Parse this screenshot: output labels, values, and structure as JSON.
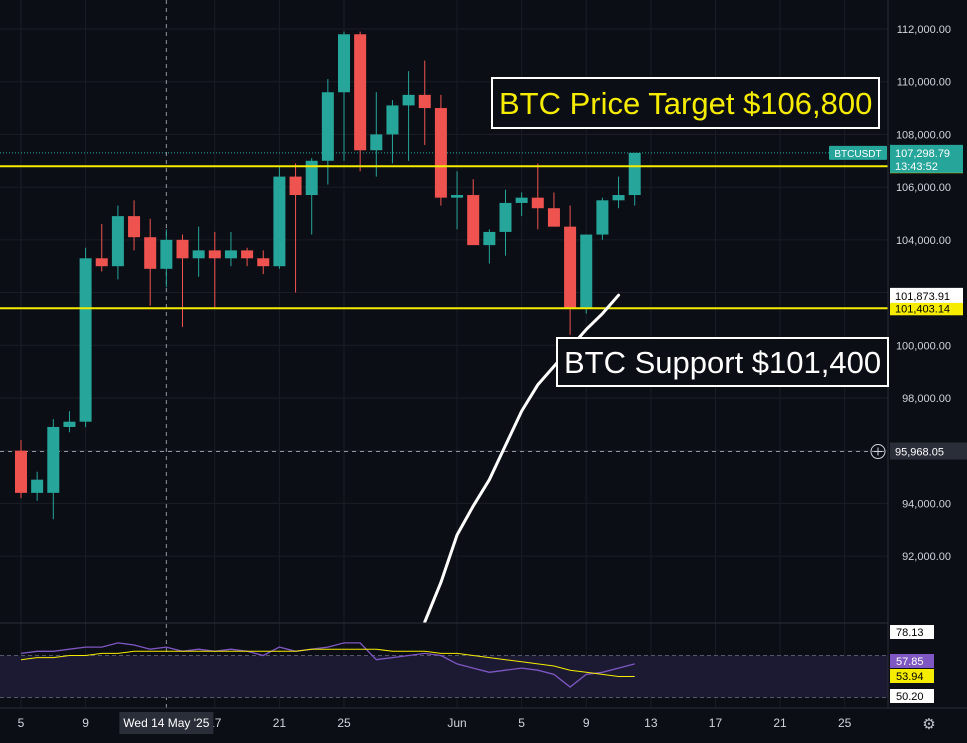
{
  "chart_data": {
    "type": "candlestick",
    "symbol": "BTCUSDT",
    "last_price": "107,298.79",
    "countdown": "13:43:52",
    "crosshair": {
      "date_label": "Wed 14 May '25",
      "price_label": "95,968.05"
    },
    "ylim": [
      89500,
      113100
    ],
    "y_ticks": [
      {
        "value": 92000,
        "label": "92,000.00"
      },
      {
        "value": 94000,
        "label": "94,000.00"
      },
      {
        "value": 96000,
        "label": "96,000.00"
      },
      {
        "value": 98000,
        "label": "98,000.00"
      },
      {
        "value": 100000,
        "label": "100,000.00"
      },
      {
        "value": 102000,
        "label": "102,000.00"
      },
      {
        "value": 104000,
        "label": "104,000.00"
      },
      {
        "value": 106000,
        "label": "106,000.00"
      },
      {
        "value": 108000,
        "label": "108,000.00"
      },
      {
        "value": 110000,
        "label": "110,000.00"
      },
      {
        "value": 112000,
        "label": "112,000.00"
      }
    ],
    "x_ticks": [
      {
        "day": 0,
        "label": "5"
      },
      {
        "day": 4,
        "label": "9"
      },
      {
        "day": 12,
        "label": "17"
      },
      {
        "day": 16,
        "label": "21"
      },
      {
        "day": 20,
        "label": "25"
      },
      {
        "day": 27,
        "label": "Jun"
      },
      {
        "day": 31,
        "label": "5"
      },
      {
        "day": 35,
        "label": "9"
      },
      {
        "day": 39,
        "label": "13"
      },
      {
        "day": 43,
        "label": "17"
      },
      {
        "day": 47,
        "label": "21"
      },
      {
        "day": 51,
        "label": "25"
      }
    ],
    "candles": [
      {
        "o": 96000,
        "h": 96400,
        "l": 94200,
        "c": 94400
      },
      {
        "o": 94400,
        "h": 95200,
        "l": 94100,
        "c": 94900
      },
      {
        "o": 94400,
        "h": 97200,
        "l": 93400,
        "c": 96900
      },
      {
        "o": 96900,
        "h": 97500,
        "l": 96700,
        "c": 97100
      },
      {
        "o": 97100,
        "h": 103700,
        "l": 96900,
        "c": 103300
      },
      {
        "o": 103300,
        "h": 104600,
        "l": 102800,
        "c": 103000
      },
      {
        "o": 103000,
        "h": 105300,
        "l": 102500,
        "c": 104900
      },
      {
        "o": 104900,
        "h": 105500,
        "l": 103600,
        "c": 104100
      },
      {
        "o": 104100,
        "h": 104800,
        "l": 101500,
        "c": 102900
      },
      {
        "o": 102900,
        "h": 104400,
        "l": 102200,
        "c": 104000
      },
      {
        "o": 104000,
        "h": 104200,
        "l": 100700,
        "c": 103300
      },
      {
        "o": 103300,
        "h": 104500,
        "l": 102600,
        "c": 103600
      },
      {
        "o": 103600,
        "h": 104300,
        "l": 101400,
        "c": 103300
      },
      {
        "o": 103300,
        "h": 104300,
        "l": 103000,
        "c": 103600
      },
      {
        "o": 103600,
        "h": 103700,
        "l": 103000,
        "c": 103300
      },
      {
        "o": 103300,
        "h": 103600,
        "l": 102700,
        "c": 103000
      },
      {
        "o": 103000,
        "h": 106800,
        "l": 102900,
        "c": 106400
      },
      {
        "o": 106400,
        "h": 106900,
        "l": 102000,
        "c": 105700
      },
      {
        "o": 105700,
        "h": 107100,
        "l": 104200,
        "c": 107000
      },
      {
        "o": 107000,
        "h": 110100,
        "l": 106100,
        "c": 109600
      },
      {
        "o": 109600,
        "h": 111900,
        "l": 107000,
        "c": 111800
      },
      {
        "o": 111800,
        "h": 111900,
        "l": 106600,
        "c": 107400
      },
      {
        "o": 107400,
        "h": 109600,
        "l": 106400,
        "c": 108000
      },
      {
        "o": 108000,
        "h": 109300,
        "l": 106900,
        "c": 109100
      },
      {
        "o": 109100,
        "h": 110400,
        "l": 107000,
        "c": 109500
      },
      {
        "o": 109500,
        "h": 110800,
        "l": 107600,
        "c": 109000
      },
      {
        "o": 109000,
        "h": 109500,
        "l": 105300,
        "c": 105600
      },
      {
        "o": 105600,
        "h": 106600,
        "l": 104400,
        "c": 105700
      },
      {
        "o": 105700,
        "h": 106300,
        "l": 104000,
        "c": 103800
      },
      {
        "o": 103800,
        "h": 104400,
        "l": 103100,
        "c": 104300
      },
      {
        "o": 104300,
        "h": 105900,
        "l": 103400,
        "c": 105400
      },
      {
        "o": 105400,
        "h": 105800,
        "l": 104900,
        "c": 105600
      },
      {
        "o": 105600,
        "h": 106900,
        "l": 104400,
        "c": 105200
      },
      {
        "o": 105200,
        "h": 105800,
        "l": 104500,
        "c": 104500
      },
      {
        "o": 104500,
        "h": 105300,
        "l": 100400,
        "c": 101400
      },
      {
        "o": 101400,
        "h": 104200,
        "l": 101200,
        "c": 104200
      },
      {
        "o": 104200,
        "h": 105600,
        "l": 104000,
        "c": 105500
      },
      {
        "o": 105500,
        "h": 106400,
        "l": 105200,
        "c": 105700
      },
      {
        "o": 105700,
        "h": 107300,
        "l": 105300,
        "c": 107300
      }
    ],
    "horizontal_lines": [
      {
        "price": 106793.79,
        "label": "106,793.79",
        "color": "#f5ec00"
      },
      {
        "price": 101403.14,
        "label": "101,403.14",
        "color": "#f5ec00"
      }
    ],
    "extra_price_label": "101,873.91",
    "trendline": {
      "color": "#ffffff",
      "points": [
        {
          "day": 25,
          "price": 89500
        },
        {
          "day": 26,
          "price": 91000
        },
        {
          "day": 27,
          "price": 92800
        },
        {
          "day": 28,
          "price": 93900
        },
        {
          "day": 29,
          "price": 94900
        },
        {
          "day": 30,
          "price": 96200
        },
        {
          "day": 31,
          "price": 97500
        },
        {
          "day": 32,
          "price": 98500
        },
        {
          "day": 33,
          "price": 99200
        },
        {
          "day": 34,
          "price": 99900
        },
        {
          "day": 35,
          "price": 100600
        },
        {
          "day": 36,
          "price": 101200
        },
        {
          "day": 37,
          "price": 101900
        }
      ]
    },
    "annotations": {
      "target": "BTC Price Target $106,800",
      "support": "BTC Support $101,400"
    },
    "rsi": {
      "ylim": [
        45,
        85
      ],
      "labels": [
        {
          "value": 78.13,
          "label": "78.13"
        },
        {
          "value": 57.85,
          "label": "57.85"
        },
        {
          "value": 53.94,
          "label": "53.94"
        },
        {
          "value": 50.2,
          "label": "50.20"
        }
      ],
      "rsi_values": [
        71,
        72,
        72,
        73,
        74,
        74,
        76,
        75,
        73,
        74,
        72,
        73,
        72,
        73,
        72,
        70,
        74,
        72,
        73,
        74,
        76,
        76,
        68,
        69,
        70,
        71,
        70,
        66,
        64,
        62,
        63,
        64,
        63,
        61,
        55,
        61,
        62,
        64,
        66
      ],
      "ma_values": [
        68,
        69,
        69,
        70,
        70,
        71,
        71,
        72,
        72,
        72,
        72,
        72,
        72,
        72,
        72,
        72,
        72,
        72,
        73,
        73,
        73,
        73,
        73,
        72,
        72,
        72,
        71,
        71,
        70,
        69,
        68,
        67,
        66,
        65,
        63,
        62,
        61,
        60,
        60
      ],
      "colors": {
        "rsi": "#7e57c2",
        "ma": "#f5ec00",
        "band": "#1c1a33"
      }
    },
    "colors": {
      "up": "#26a69a",
      "down": "#ef5350",
      "bg": "#0c0e15",
      "grid": "#1a1d26",
      "axis_text": "#d1d4dc"
    },
    "grid": true
  },
  "ui": {
    "settings_icon": "gear-icon"
  }
}
